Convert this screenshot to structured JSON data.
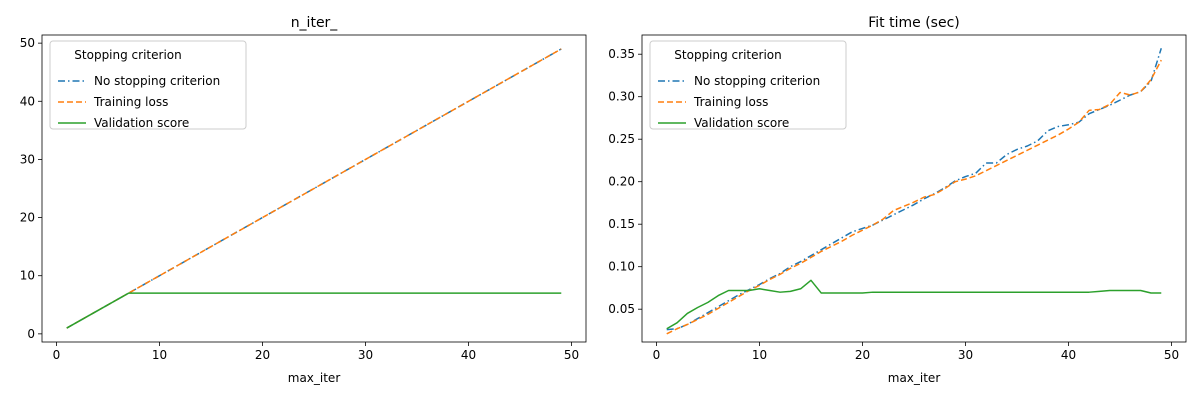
{
  "chart_data": [
    {
      "type": "line",
      "title": "n_iter_",
      "xlabel": "max_iter",
      "ylabel": "",
      "xlim": [
        -1.4,
        51.4
      ],
      "ylim": [
        -1.4,
        51.4
      ],
      "xticks": [
        0,
        10,
        20,
        30,
        40,
        50
      ],
      "yticks": [
        0,
        10,
        20,
        30,
        40,
        50
      ],
      "ytick_labels": [
        "0",
        "10",
        "20",
        "30",
        "40",
        "50"
      ],
      "grid": false,
      "legend": {
        "title": "Stopping criterion",
        "placement": "upper-left"
      },
      "series": [
        {
          "name": "No stopping criterion",
          "color": "#1f77b4",
          "style": "dashdot",
          "x": [
            1,
            49
          ],
          "y": [
            1,
            49
          ]
        },
        {
          "name": "Training loss",
          "color": "#ff7f0e",
          "style": "dashed",
          "x": [
            1,
            49
          ],
          "y": [
            1,
            49
          ]
        },
        {
          "name": "Validation score",
          "color": "#2ca02c",
          "style": "solid",
          "x": [
            1,
            7,
            49
          ],
          "y": [
            1,
            7,
            7
          ]
        }
      ]
    },
    {
      "type": "line",
      "title": "Fit time (sec)",
      "xlabel": "max_iter",
      "ylabel": "",
      "xlim": [
        -1.4,
        51.4
      ],
      "ylim": [
        0.0114,
        0.3726
      ],
      "xticks": [
        0,
        10,
        20,
        30,
        40,
        50
      ],
      "yticks": [
        0.05,
        0.1,
        0.15,
        0.2,
        0.25,
        0.3,
        0.35
      ],
      "ytick_labels": [
        "0.05",
        "0.10",
        "0.15",
        "0.20",
        "0.25",
        "0.30",
        "0.35"
      ],
      "grid": false,
      "legend": {
        "title": "Stopping criterion",
        "placement": "upper-left"
      },
      "series": [
        {
          "name": "No stopping criterion",
          "color": "#1f77b4",
          "style": "dashdot",
          "x": [
            1,
            2,
            3,
            4,
            5,
            6,
            7,
            8,
            9,
            10,
            11,
            12,
            13,
            14,
            15,
            16,
            17,
            18,
            19,
            20,
            21,
            22,
            23,
            24,
            25,
            26,
            27,
            28,
            29,
            30,
            31,
            32,
            33,
            34,
            35,
            36,
            37,
            38,
            39,
            40,
            41,
            42,
            43,
            44,
            45,
            46,
            47,
            48,
            49
          ],
          "y": [
            0.026,
            0.027,
            0.032,
            0.039,
            0.046,
            0.053,
            0.06,
            0.067,
            0.073,
            0.079,
            0.086,
            0.092,
            0.1,
            0.106,
            0.113,
            0.12,
            0.127,
            0.134,
            0.141,
            0.145,
            0.149,
            0.155,
            0.161,
            0.167,
            0.173,
            0.18,
            0.186,
            0.193,
            0.201,
            0.206,
            0.21,
            0.222,
            0.222,
            0.232,
            0.238,
            0.242,
            0.248,
            0.26,
            0.265,
            0.267,
            0.27,
            0.28,
            0.285,
            0.29,
            0.296,
            0.302,
            0.306,
            0.318,
            0.357
          ]
        },
        {
          "name": "Training loss",
          "color": "#ff7f0e",
          "style": "dashed",
          "x": [
            1,
            2,
            3,
            4,
            5,
            6,
            7,
            8,
            9,
            10,
            11,
            12,
            13,
            14,
            15,
            16,
            17,
            18,
            19,
            20,
            21,
            22,
            23,
            24,
            25,
            26,
            27,
            28,
            29,
            30,
            31,
            32,
            33,
            34,
            35,
            36,
            37,
            38,
            39,
            40,
            41,
            42,
            43,
            44,
            45,
            46,
            47,
            48,
            49
          ],
          "y": [
            0.021,
            0.027,
            0.032,
            0.038,
            0.044,
            0.051,
            0.058,
            0.065,
            0.072,
            0.078,
            0.085,
            0.091,
            0.098,
            0.104,
            0.111,
            0.118,
            0.124,
            0.13,
            0.137,
            0.143,
            0.149,
            0.156,
            0.166,
            0.171,
            0.176,
            0.182,
            0.185,
            0.192,
            0.2,
            0.203,
            0.207,
            0.213,
            0.219,
            0.225,
            0.231,
            0.237,
            0.243,
            0.249,
            0.255,
            0.262,
            0.27,
            0.284,
            0.285,
            0.291,
            0.305,
            0.302,
            0.306,
            0.32,
            0.343
          ]
        },
        {
          "name": "Validation score",
          "color": "#2ca02c",
          "style": "solid",
          "x": [
            1,
            2,
            3,
            4,
            5,
            6,
            7,
            8,
            9,
            10,
            11,
            12,
            13,
            14,
            15,
            16,
            17,
            18,
            19,
            20,
            21,
            22,
            23,
            24,
            25,
            26,
            27,
            28,
            29,
            30,
            31,
            32,
            33,
            34,
            35,
            36,
            37,
            38,
            39,
            40,
            41,
            42,
            43,
            44,
            45,
            46,
            47,
            48,
            49
          ],
          "y": [
            0.027,
            0.034,
            0.045,
            0.052,
            0.058,
            0.066,
            0.072,
            0.072,
            0.072,
            0.074,
            0.072,
            0.07,
            0.071,
            0.074,
            0.084,
            0.069,
            0.069,
            0.069,
            0.069,
            0.069,
            0.07,
            0.07,
            0.07,
            0.07,
            0.07,
            0.07,
            0.07,
            0.07,
            0.07,
            0.07,
            0.07,
            0.07,
            0.07,
            0.07,
            0.07,
            0.07,
            0.07,
            0.07,
            0.07,
            0.07,
            0.07,
            0.07,
            0.071,
            0.072,
            0.072,
            0.072,
            0.072,
            0.069,
            0.069
          ]
        }
      ]
    }
  ]
}
